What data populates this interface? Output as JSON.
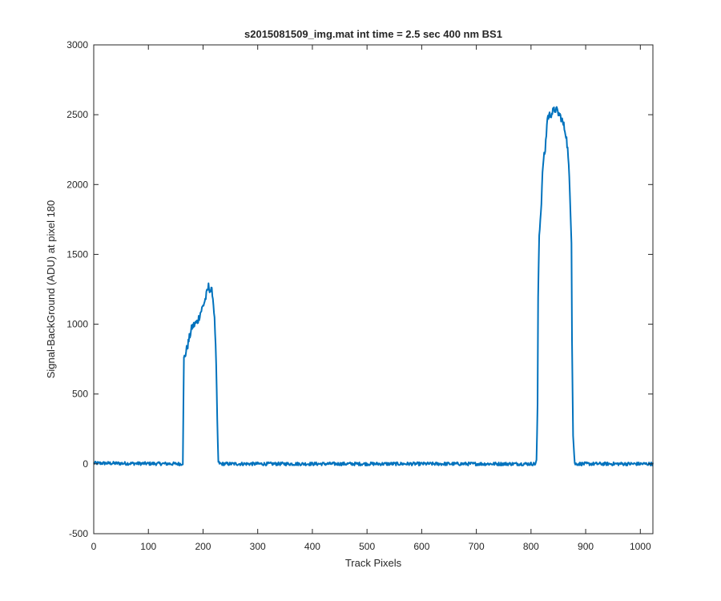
{
  "chart_data": {
    "type": "line",
    "title": "s2015081509_img.mat int time = 2.5 sec  400 nm BS1",
    "xlabel": "Track Pixels",
    "ylabel": "Signal-BackGround (ADU) at pixel 180",
    "xlim": [
      0,
      1023
    ],
    "ylim": [
      -500,
      3000
    ],
    "x_ticks": [
      0,
      100,
      200,
      300,
      400,
      500,
      600,
      700,
      800,
      900,
      1000
    ],
    "y_ticks": [
      -500,
      0,
      500,
      1000,
      1500,
      2000,
      2500,
      3000
    ],
    "x_tick_labels": [
      "0",
      "100",
      "200",
      "300",
      "400",
      "500",
      "600",
      "700",
      "800",
      "900",
      "1000"
    ],
    "y_tick_labels": [
      "-500",
      "0",
      "500",
      "1000",
      "1500",
      "2000",
      "2500",
      "3000"
    ],
    "grid": false,
    "series": [
      {
        "color": "#0072BD",
        "points": [
          [
            0,
            5
          ],
          [
            160,
            0
          ],
          [
            163,
            5
          ],
          [
            165,
            750
          ],
          [
            168,
            790
          ],
          [
            172,
            850
          ],
          [
            176,
            920
          ],
          [
            180,
            980
          ],
          [
            185,
            1000
          ],
          [
            190,
            1020
          ],
          [
            195,
            1080
          ],
          [
            200,
            1130
          ],
          [
            205,
            1190
          ],
          [
            210,
            1270
          ],
          [
            214,
            1240
          ],
          [
            217,
            1230
          ],
          [
            220,
            1100
          ],
          [
            222,
            950
          ],
          [
            224,
            700
          ],
          [
            226,
            300
          ],
          [
            228,
            10
          ],
          [
            232,
            0
          ],
          [
            400,
            0
          ],
          [
            600,
            0
          ],
          [
            808,
            0
          ],
          [
            810,
            20
          ],
          [
            812,
            400
          ],
          [
            813,
            1200
          ],
          [
            815,
            1650
          ],
          [
            818,
            1800
          ],
          [
            822,
            2150
          ],
          [
            826,
            2250
          ],
          [
            830,
            2480
          ],
          [
            835,
            2500
          ],
          [
            840,
            2520
          ],
          [
            845,
            2540
          ],
          [
            850,
            2510
          ],
          [
            855,
            2480
          ],
          [
            860,
            2420
          ],
          [
            864,
            2360
          ],
          [
            867,
            2250
          ],
          [
            870,
            2050
          ],
          [
            872,
            1850
          ],
          [
            874,
            1600
          ],
          [
            875,
            900
          ],
          [
            877,
            200
          ],
          [
            880,
            0
          ],
          [
            1023,
            0
          ]
        ]
      }
    ]
  }
}
